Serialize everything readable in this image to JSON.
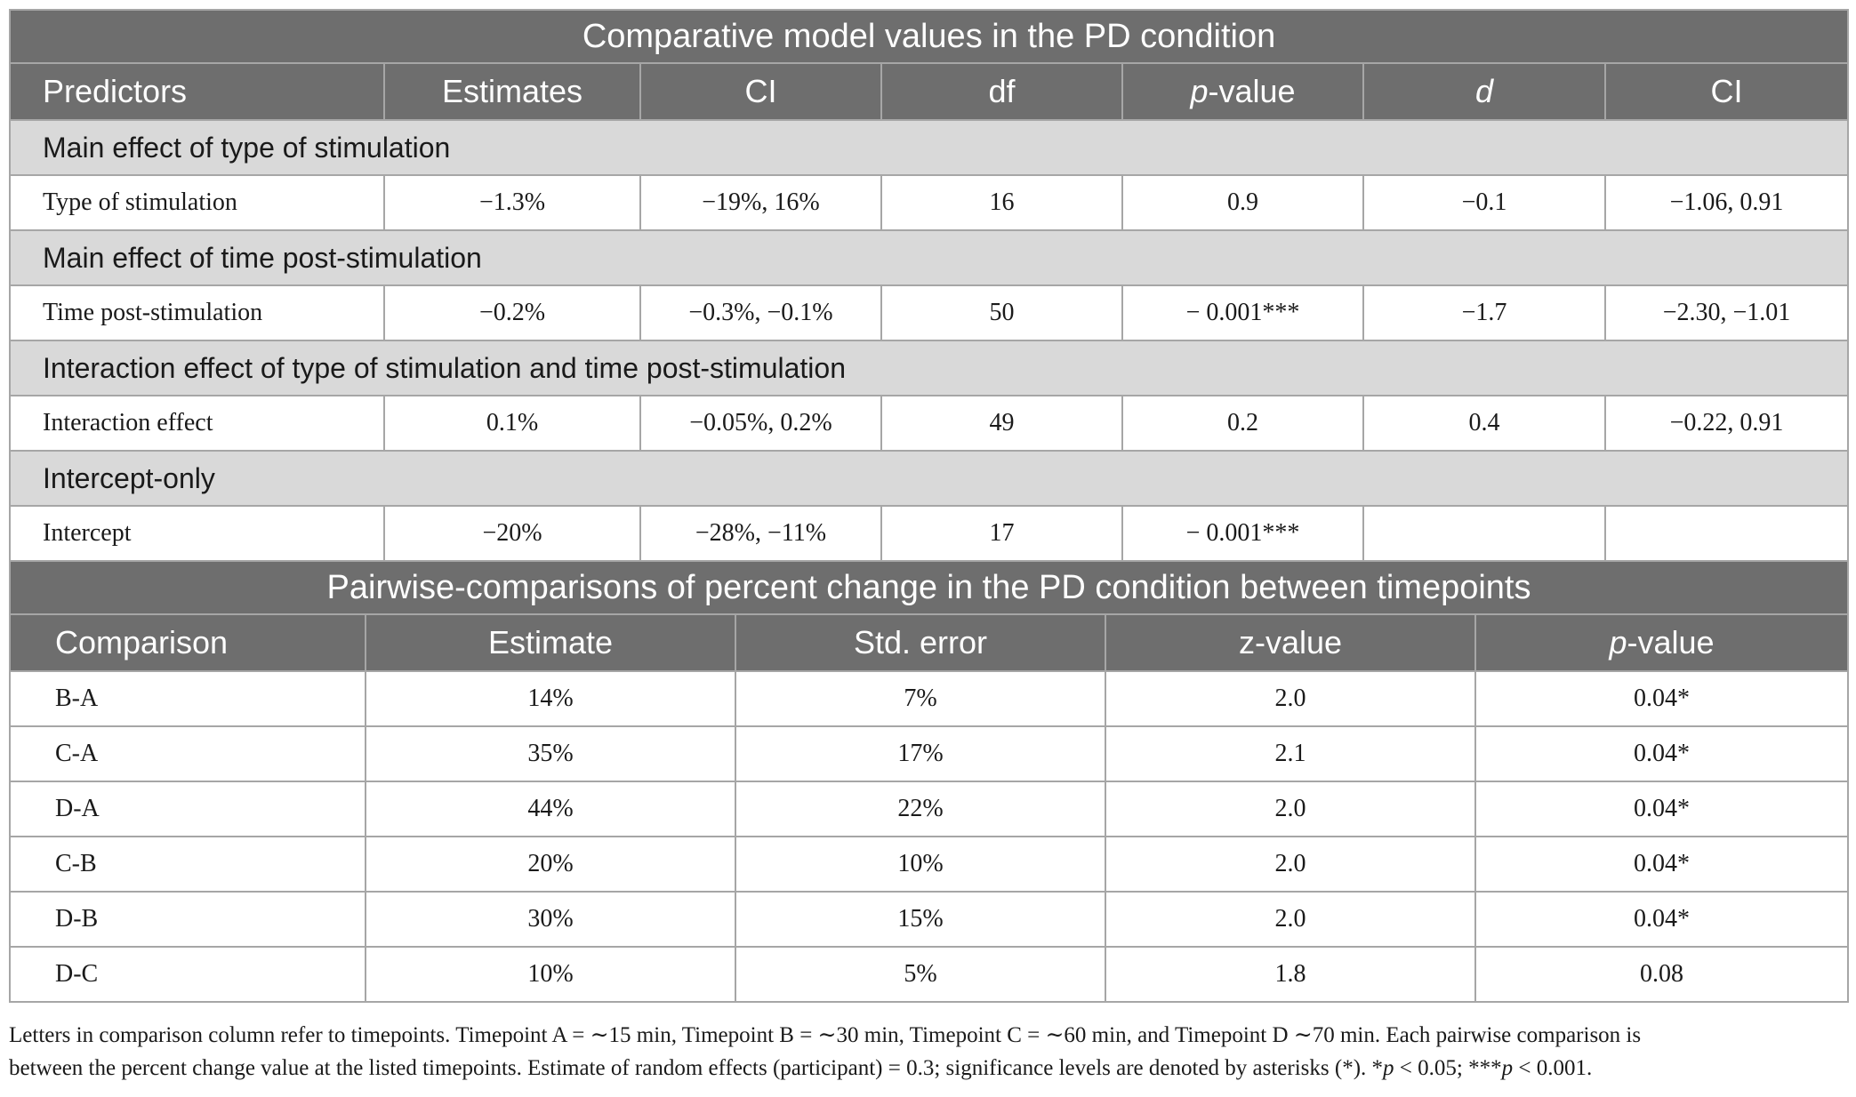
{
  "table1": {
    "title": "Comparative model values in the PD condition",
    "headers": [
      {
        "text": "Predictors"
      },
      {
        "text": "Estimates"
      },
      {
        "text": "CI"
      },
      {
        "text": "df"
      },
      {
        "prefix": "p",
        "suffix": "-value"
      },
      {
        "text": "d"
      },
      {
        "text": "CI"
      }
    ],
    "sections": [
      {
        "label": "Main effect of type of stimulation",
        "row": [
          "Type of stimulation",
          "−1.3%",
          "−19%, 16%",
          "16",
          "0.9",
          "−0.1",
          "−1.06, 0.91"
        ]
      },
      {
        "label": "Main effect of time post-stimulation",
        "row": [
          "Time post-stimulation",
          "−0.2%",
          "−0.3%, −0.1%",
          "50",
          "− 0.001***",
          "−1.7",
          "−2.30, −1.01"
        ]
      },
      {
        "label": "Interaction effect of type of stimulation and time post-stimulation",
        "row": [
          "Interaction effect",
          "0.1%",
          "−0.05%, 0.2%",
          "49",
          "0.2",
          "0.4",
          "−0.22, 0.91"
        ]
      },
      {
        "label": "Intercept-only",
        "row": [
          "Intercept",
          "−20%",
          "−28%, −11%",
          "17",
          "− 0.001***",
          "",
          ""
        ]
      }
    ]
  },
  "table2": {
    "title": "Pairwise-comparisons of percent change in the PD condition between timepoints",
    "headers": [
      {
        "text": "Comparison"
      },
      {
        "text": "Estimate"
      },
      {
        "text": "Std. error"
      },
      {
        "text": "z-value"
      },
      {
        "prefix": "p",
        "suffix": "-value"
      }
    ],
    "rows": [
      [
        "B-A",
        "14%",
        "7%",
        "2.0",
        "0.04*"
      ],
      [
        "C-A",
        "35%",
        "17%",
        "2.1",
        "0.04*"
      ],
      [
        "D-A",
        "44%",
        "22%",
        "2.0",
        "0.04*"
      ],
      [
        "C-B",
        "20%",
        "10%",
        "2.0",
        "0.04*"
      ],
      [
        "D-B",
        "30%",
        "15%",
        "2.0",
        "0.04*"
      ],
      [
        "D-C",
        "10%",
        "5%",
        "1.8",
        "0.08"
      ]
    ]
  },
  "footnote": {
    "line1": "Letters in comparison column refer to timepoints. Timepoint A = ∼15 min, Timepoint B = ∼30 min, Timepoint C = ∼60 min, and Timepoint D ∼70 min. Each pairwise comparison is",
    "line2a": "between the percent change value at the listed timepoints. Estimate of random effects (participant) = 0.3; significance levels are denoted by asterisks (*). *",
    "p1": "p",
    "line2b": " < 0.05; ***",
    "p2": "p",
    "line2c": " < 0.001."
  }
}
